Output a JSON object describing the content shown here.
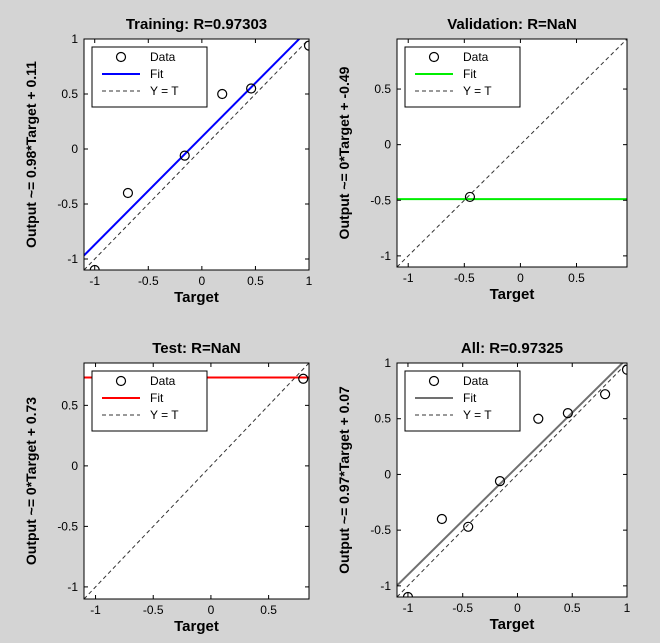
{
  "chart_data": [
    {
      "type": "scatter",
      "title": "Training: R=0.97303",
      "xlabel": "Target",
      "ylabel": "Output ~= 0.98*Target + 0.11",
      "xlim": [
        -1.1,
        1.0
      ],
      "ylim": [
        -1.1,
        1.0
      ],
      "xticks": [
        -1,
        -0.5,
        0,
        0.5,
        1
      ],
      "xtick_labels": [
        "-1",
        "-0.5",
        "0",
        "0.5",
        "1"
      ],
      "yticks": [
        -1,
        -0.5,
        0,
        0.5,
        1
      ],
      "ytick_labels": [
        "-1",
        "-0.5",
        "0",
        "0.5",
        "1"
      ],
      "fit_color": "#0000ff",
      "fit": {
        "slope": 0.98,
        "intercept": 0.11
      },
      "x": [
        -1.0,
        -0.69,
        -0.16,
        0.19,
        0.46,
        1.0
      ],
      "y": [
        -1.1,
        -0.4,
        -0.06,
        0.5,
        0.55,
        0.94
      ],
      "legend": {
        "position": "top-left",
        "entries": [
          "Data",
          "Fit",
          "Y = T"
        ]
      }
    },
    {
      "type": "scatter",
      "title": "Validation: R=NaN",
      "xlabel": "Target",
      "ylabel": "Output ~= 0*Target + -0.49",
      "xlim": [
        -1.1,
        0.95
      ],
      "ylim": [
        -1.1,
        0.95
      ],
      "xticks": [
        -1,
        -0.5,
        0,
        0.5
      ],
      "xtick_labels": [
        "-1",
        "-0.5",
        "0",
        "0.5"
      ],
      "yticks": [
        -1,
        -0.5,
        0,
        0.5
      ],
      "ytick_labels": [
        "-1",
        "-0.5",
        "0",
        "0.5"
      ],
      "fit_color": "#00ee00",
      "fit": {
        "slope": 0,
        "intercept": -0.49
      },
      "x": [
        -0.45
      ],
      "y": [
        -0.47
      ],
      "legend": {
        "position": "top-left",
        "entries": [
          "Data",
          "Fit",
          "Y = T"
        ]
      }
    },
    {
      "type": "scatter",
      "title": "Test: R=NaN",
      "xlabel": "Target",
      "ylabel": "Output ~= 0*Target + 0.73",
      "xlim": [
        -1.1,
        0.85
      ],
      "ylim": [
        -1.1,
        0.85
      ],
      "xticks": [
        -1,
        -0.5,
        0,
        0.5
      ],
      "xtick_labels": [
        "-1",
        "-0.5",
        "0",
        "0.5"
      ],
      "yticks": [
        -1,
        -0.5,
        0,
        0.5
      ],
      "ytick_labels": [
        "-1",
        "-0.5",
        "0",
        "0.5"
      ],
      "fit_color": "#ff0000",
      "fit": {
        "slope": 0,
        "intercept": 0.73
      },
      "x": [
        0.8
      ],
      "y": [
        0.72
      ],
      "legend": {
        "position": "top-left",
        "entries": [
          "Data",
          "Fit",
          "Y = T"
        ]
      }
    },
    {
      "type": "scatter",
      "title": "All: R=0.97325",
      "xlabel": "Target",
      "ylabel": "Output ~= 0.97*Target + 0.07",
      "xlim": [
        -1.1,
        1.0
      ],
      "ylim": [
        -1.1,
        1.0
      ],
      "xticks": [
        -1,
        -0.5,
        0,
        0.5,
        1
      ],
      "xtick_labels": [
        "-1",
        "-0.5",
        "0",
        "0.5",
        "1"
      ],
      "yticks": [
        -1,
        -0.5,
        0,
        0.5,
        1
      ],
      "ytick_labels": [
        "-1",
        "-0.5",
        "0",
        "0.5",
        "1"
      ],
      "fit_color": "#707070",
      "fit": {
        "slope": 0.97,
        "intercept": 0.07
      },
      "x": [
        -1.0,
        -0.69,
        -0.45,
        -0.16,
        0.19,
        0.46,
        0.8,
        1.0
      ],
      "y": [
        -1.1,
        -0.4,
        -0.47,
        -0.06,
        0.5,
        0.55,
        0.72,
        0.94
      ],
      "legend": {
        "position": "top-left",
        "entries": [
          "Data",
          "Fit",
          "Y = T"
        ]
      }
    }
  ]
}
